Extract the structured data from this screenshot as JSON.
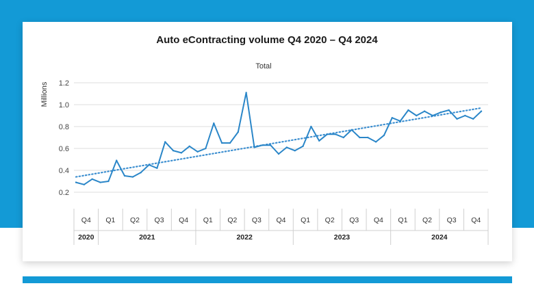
{
  "colors": {
    "background_blue": "#139ad6",
    "series_line": "#2a86c8",
    "trend_line": "#3d8fd0",
    "grid": "#dcdcdc"
  },
  "chart_data": {
    "type": "line",
    "title": "Auto eContracting volume Q4 2020 – Q4 2024",
    "subtitle": "Total",
    "ylabel": "Millions",
    "xlabel": "",
    "ylim": [
      0.2,
      1.2
    ],
    "yticks": [
      "0.2",
      "0.4",
      "0.6",
      "0.8",
      "1.0",
      "1.2"
    ],
    "grid": true,
    "legend": "none",
    "quarters": [
      {
        "label": "Q4",
        "year": "2020"
      },
      {
        "label": "Q1",
        "year": "2021"
      },
      {
        "label": "Q2",
        "year": "2021"
      },
      {
        "label": "Q3",
        "year": "2021"
      },
      {
        "label": "Q4",
        "year": "2021"
      },
      {
        "label": "Q1",
        "year": "2022"
      },
      {
        "label": "Q2",
        "year": "2022"
      },
      {
        "label": "Q3",
        "year": "2022"
      },
      {
        "label": "Q4",
        "year": "2022"
      },
      {
        "label": "Q1",
        "year": "2023"
      },
      {
        "label": "Q2",
        "year": "2023"
      },
      {
        "label": "Q3",
        "year": "2023"
      },
      {
        "label": "Q4",
        "year": "2023"
      },
      {
        "label": "Q1",
        "year": "2024"
      },
      {
        "label": "Q2",
        "year": "2024"
      },
      {
        "label": "Q3",
        "year": "2024"
      },
      {
        "label": "Q4",
        "year": "2024"
      }
    ],
    "years": [
      {
        "label": "2020",
        "quarters": 1
      },
      {
        "label": "2021",
        "quarters": 4
      },
      {
        "label": "2022",
        "quarters": 4
      },
      {
        "label": "2023",
        "quarters": 4
      },
      {
        "label": "2024",
        "quarters": 4
      }
    ],
    "series": [
      {
        "values": [
          0.29,
          0.27,
          0.32,
          0.29,
          0.3,
          0.49,
          0.35,
          0.34,
          0.38,
          0.45,
          0.42,
          0.66,
          0.58,
          0.56,
          0.62,
          0.57,
          0.6,
          0.83,
          0.65,
          0.65,
          0.75,
          1.11,
          0.61,
          0.63,
          0.63,
          0.55,
          0.61,
          0.58,
          0.62,
          0.8,
          0.67,
          0.73,
          0.73,
          0.7,
          0.77,
          0.7,
          0.7,
          0.66,
          0.72,
          0.88,
          0.85,
          0.95,
          0.9,
          0.94,
          0.9,
          0.93,
          0.95,
          0.87,
          0.9,
          0.87,
          0.94
        ]
      }
    ],
    "trendline": {
      "start": 0.34,
      "end": 0.97,
      "style": "dotted"
    }
  }
}
